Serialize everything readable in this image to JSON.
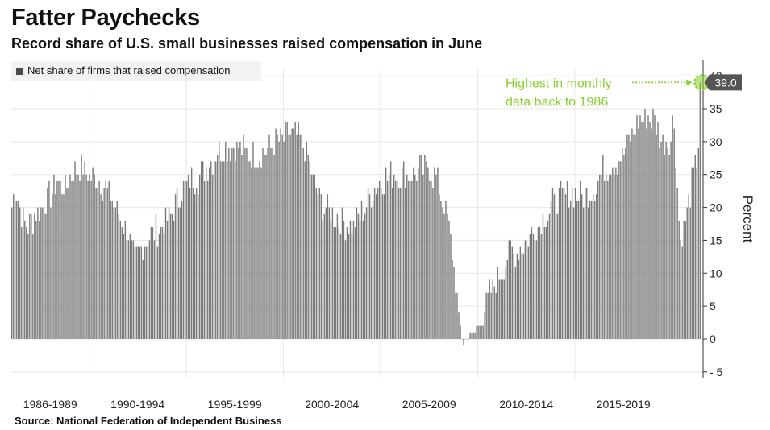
{
  "header": {
    "title": "Fatter Paychecks",
    "subtitle": "Record share of U.S. small businesses raised compensation in June"
  },
  "footer": {
    "source": "Source: National Federation of Independent Business"
  },
  "colors": {
    "bar": "#7a7a7a",
    "accent": "#86d12b",
    "grid": "#e6e6e6",
    "label_box": "#555555"
  },
  "chart_data": {
    "type": "bar",
    "legend": "Net share of firms that raised compensation",
    "ylabel": "Percent",
    "ylim": [
      -6,
      41
    ],
    "yticks": [
      -5,
      0,
      5,
      10,
      15,
      20,
      25,
      30,
      35,
      40
    ],
    "xlim": [
      1986.0,
      2021.6
    ],
    "grid": true,
    "x_tick_labels": [
      {
        "label": "1986-1989",
        "at": 1988.0
      },
      {
        "label": "1990-1994",
        "at": 1992.5
      },
      {
        "label": "1995-1999",
        "at": 1997.5
      },
      {
        "label": "2000-2004",
        "at": 2002.5
      },
      {
        "label": "2005-2009",
        "at": 2007.5
      },
      {
        "label": "2010-2014",
        "at": 2012.5
      },
      {
        "label": "2015-2019",
        "at": 2017.5
      }
    ],
    "series": [
      {
        "name": "Net share of firms that raised compensation",
        "frequency": "monthly",
        "start": "1986-01",
        "end": "2021-06",
        "anchors": [
          [
            1986.0,
            20
          ],
          [
            1986.2,
            23
          ],
          [
            1986.5,
            19
          ],
          [
            1986.8,
            17
          ],
          [
            1987.2,
            19
          ],
          [
            1987.8,
            21
          ],
          [
            1988.3,
            24
          ],
          [
            1988.8,
            23
          ],
          [
            1989.2,
            26
          ],
          [
            1989.6,
            26
          ],
          [
            1990.0,
            25
          ],
          [
            1990.5,
            24
          ],
          [
            1991.0,
            22
          ],
          [
            1991.5,
            19
          ],
          [
            1991.9,
            17
          ],
          [
            1992.3,
            12
          ],
          [
            1992.7,
            14
          ],
          [
            1993.2,
            16
          ],
          [
            1993.7,
            17
          ],
          [
            1994.2,
            19
          ],
          [
            1994.7,
            22
          ],
          [
            1995.2,
            24
          ],
          [
            1995.7,
            25
          ],
          [
            1996.2,
            27
          ],
          [
            1996.7,
            29
          ],
          [
            1997.2,
            29
          ],
          [
            1997.7,
            29
          ],
          [
            1998.2,
            28
          ],
          [
            1998.7,
            28
          ],
          [
            1999.2,
            29
          ],
          [
            1999.7,
            30
          ],
          [
            2000.2,
            31
          ],
          [
            2000.7,
            31
          ],
          [
            2001.2,
            28
          ],
          [
            2001.6,
            23
          ],
          [
            2002.0,
            20
          ],
          [
            2002.5,
            19
          ],
          [
            2003.0,
            18
          ],
          [
            2003.5,
            17
          ],
          [
            2004.0,
            19
          ],
          [
            2004.5,
            22
          ],
          [
            2005.0,
            24
          ],
          [
            2005.5,
            25
          ],
          [
            2006.0,
            25
          ],
          [
            2006.5,
            25
          ],
          [
            2007.0,
            26
          ],
          [
            2007.5,
            26
          ],
          [
            2007.9,
            24
          ],
          [
            2008.3,
            20
          ],
          [
            2008.6,
            15
          ],
          [
            2008.85,
            8
          ],
          [
            2009.05,
            2
          ],
          [
            2009.25,
            -1
          ],
          [
            2009.5,
            1
          ],
          [
            2009.75,
            0.5
          ],
          [
            2010.0,
            2
          ],
          [
            2010.25,
            3
          ],
          [
            2010.5,
            6
          ],
          [
            2010.8,
            8
          ],
          [
            2011.2,
            10
          ],
          [
            2011.6,
            13
          ],
          [
            2012.0,
            13
          ],
          [
            2012.5,
            15
          ],
          [
            2013.0,
            17
          ],
          [
            2013.5,
            19
          ],
          [
            2014.0,
            21
          ],
          [
            2014.5,
            22
          ],
          [
            2015.0,
            22
          ],
          [
            2015.5,
            22
          ],
          [
            2016.0,
            23
          ],
          [
            2016.5,
            26
          ],
          [
            2017.0,
            27
          ],
          [
            2017.5,
            28
          ],
          [
            2017.9,
            31
          ],
          [
            2018.3,
            33
          ],
          [
            2018.7,
            34
          ],
          [
            2019.1,
            33
          ],
          [
            2019.5,
            30
          ],
          [
            2019.9,
            30
          ],
          [
            2020.05,
            35
          ],
          [
            2020.2,
            26
          ],
          [
            2020.4,
            15
          ],
          [
            2020.6,
            17
          ],
          [
            2020.9,
            22
          ],
          [
            2021.2,
            26
          ],
          [
            2021.4,
            32
          ],
          [
            2021.5,
            39
          ]
        ]
      }
    ],
    "annotation": {
      "text_line1": "Highest in monthly",
      "text_line2": "data back to 1986",
      "value_label": "39.0",
      "value": 39.0,
      "date": "2021-06"
    }
  }
}
